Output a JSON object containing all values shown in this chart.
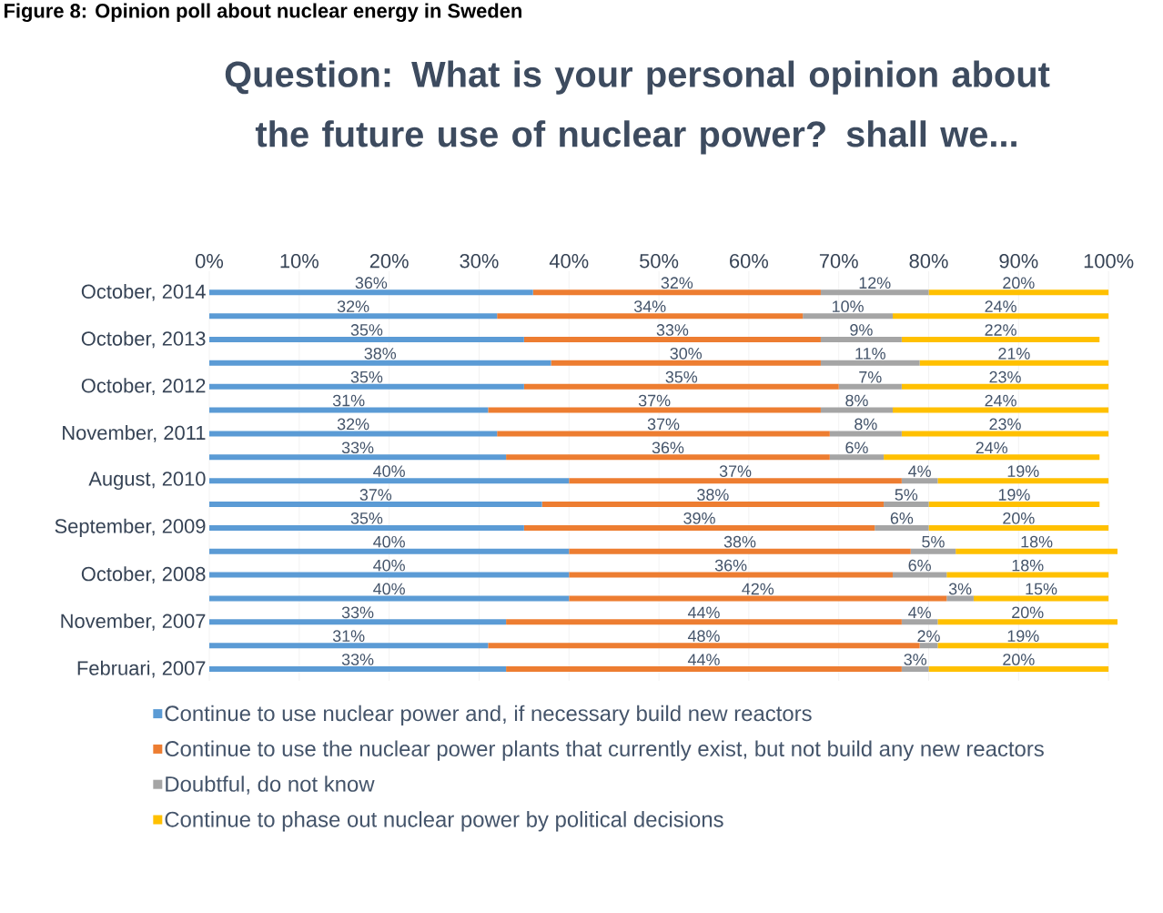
{
  "chart_data": {
    "type": "bar",
    "orientation": "horizontal",
    "stacked": true,
    "title": "Question: What is your personal opinion about the future use of nuclear power? shall we...",
    "annotations": [
      "Figure 8: Opinion poll about nuclear energy in Sweden"
    ],
    "categories": [
      "October, 2014",
      null,
      "October, 2013",
      null,
      "October, 2012",
      null,
      "November, 2011",
      null,
      "August, 2010",
      null,
      "September, 2009",
      null,
      "October, 2008",
      null,
      "November, 2007",
      null,
      "Februari, 2007"
    ],
    "series": [
      {
        "name": "Continue to use nuclear power and, if necessary build new reactors",
        "color": "#5b9bd5",
        "values": [
          36,
          32,
          35,
          38,
          35,
          31,
          32,
          33,
          40,
          37,
          35,
          40,
          40,
          40,
          33,
          31,
          33
        ],
        "value_labels": [
          "36%",
          "32%",
          "35%",
          "38%",
          "35%",
          "31%",
          "32%",
          "33%",
          "40%",
          "37%",
          "35%",
          "40%",
          "40%",
          "40%",
          "33%",
          "31%",
          "33%"
        ]
      },
      {
        "name": "Continue to use the nuclear power plants that currently exist, but not build any new reactors",
        "color": "#ed7d31",
        "values": [
          32,
          34,
          33,
          30,
          35,
          37,
          37,
          36,
          37,
          38,
          39,
          38,
          36,
          42,
          44,
          48,
          44
        ],
        "value_labels": [
          "32%",
          "34%",
          "33%",
          "30%",
          "35%",
          "37%",
          "37%",
          "36%",
          "37%",
          "38%",
          "39%",
          "38%",
          "36%",
          "42%",
          "44%",
          "48%",
          "44%"
        ]
      },
      {
        "name": "Doubtful, do not know",
        "color": "#a5a5a5",
        "values": [
          12,
          10,
          9,
          11,
          7,
          8,
          8,
          6,
          4,
          5,
          6,
          5,
          6,
          3,
          4,
          2,
          3
        ],
        "value_labels": [
          "12%",
          "10%",
          "9%",
          "11%",
          "7%",
          "8%",
          "8%",
          "6%",
          "4%",
          "5%",
          "6%",
          "5%",
          "6%",
          "3%",
          "4%",
          "2%",
          "3%"
        ]
      },
      {
        "name": "Continue to phase out nuclear power by political decisions",
        "color": "#ffc000",
        "values": [
          20,
          24,
          22,
          21,
          23,
          24,
          23,
          24,
          19,
          19,
          20,
          18,
          18,
          15,
          20,
          19,
          20
        ],
        "value_labels": [
          "20%",
          "24%",
          "22%",
          "21%",
          "23%",
          "24%",
          "23%",
          "24%",
          "19%",
          "19%",
          "20%",
          "18%",
          "18%",
          "15%",
          "20%",
          "19%",
          "20%"
        ]
      }
    ],
    "xlim": [
      0,
      101
    ],
    "xticks": [
      {
        "value": 0,
        "label": "0%"
      },
      {
        "value": 10,
        "label": "10%"
      },
      {
        "value": 20,
        "label": "20%"
      },
      {
        "value": 30,
        "label": "30%"
      },
      {
        "value": 40,
        "label": "40%"
      },
      {
        "value": 50,
        "label": "50%"
      },
      {
        "value": 60,
        "label": "60%"
      },
      {
        "value": 70,
        "label": "70%"
      },
      {
        "value": 80,
        "label": "80%"
      },
      {
        "value": 90,
        "label": "90%"
      },
      {
        "value": 100,
        "label": "100%"
      }
    ],
    "grid": "x",
    "legend": "bottom"
  }
}
